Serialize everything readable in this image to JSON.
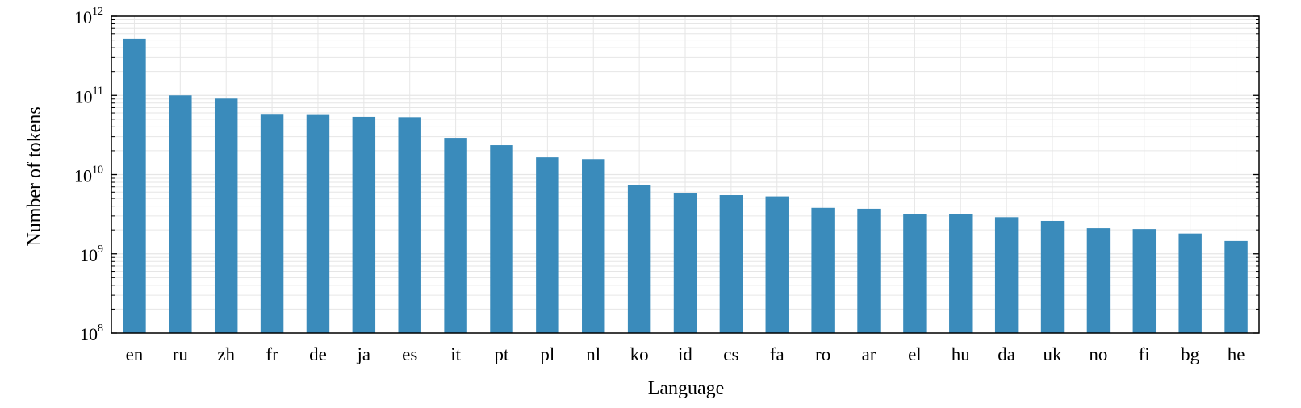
{
  "chart_data": {
    "type": "bar",
    "title": "",
    "xlabel": "Language",
    "ylabel": "Number of tokens",
    "yscale": "log",
    "ylim": [
      100000000,
      1000000000000
    ],
    "grid": true,
    "bar_color": "#3a8bbb",
    "grid_color": "#e6e6e6",
    "categories": [
      "en",
      "ru",
      "zh",
      "fr",
      "de",
      "ja",
      "es",
      "it",
      "pt",
      "pl",
      "nl",
      "ko",
      "id",
      "cs",
      "fa",
      "ro",
      "ar",
      "el",
      "hu",
      "da",
      "uk",
      "no",
      "fi",
      "bg",
      "he"
    ],
    "values": [
      520000000000,
      100000000000,
      91000000000,
      57000000000,
      56500000000,
      53500000000,
      53000000000,
      29000000000,
      23500000000,
      16500000000,
      15700000000,
      7400000000,
      5900000000,
      5500000000,
      5300000000,
      3800000000,
      3700000000,
      3200000000,
      3200000000,
      2900000000,
      2600000000,
      2100000000,
      2050000000,
      1800000000,
      1450000000
    ],
    "y_ticks": [
      {
        "base": "10",
        "exp": "8"
      },
      {
        "base": "10",
        "exp": "9"
      },
      {
        "base": "10",
        "exp": "10"
      },
      {
        "base": "10",
        "exp": "11"
      },
      {
        "base": "10",
        "exp": "12"
      }
    ]
  }
}
